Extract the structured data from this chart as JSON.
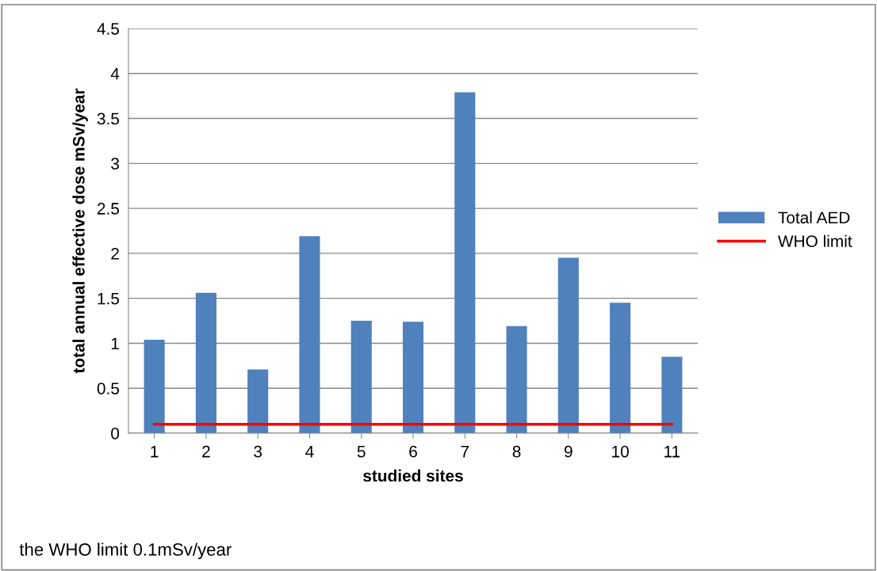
{
  "chart_data": {
    "type": "bar",
    "xlabel": "studied sites",
    "ylabel": "total annual effective dose mSv/year",
    "categories": [
      "1",
      "2",
      "3",
      "4",
      "5",
      "6",
      "7",
      "8",
      "9",
      "10",
      "11"
    ],
    "series": [
      {
        "name": "Total AED",
        "color": "#4f81bd",
        "values": [
          1.04,
          1.56,
          0.71,
          2.19,
          1.25,
          1.24,
          3.79,
          1.19,
          1.95,
          1.45,
          0.85
        ]
      },
      {
        "name": "WHO limit",
        "type": "line",
        "color": "#ff0000",
        "values": [
          0.1,
          0.1,
          0.1,
          0.1,
          0.1,
          0.1,
          0.1,
          0.1,
          0.1,
          0.1,
          0.1
        ]
      }
    ],
    "ylim": [
      0,
      4.5
    ],
    "yticks": [
      0,
      0.5,
      1,
      1.5,
      2,
      2.5,
      3,
      3.5,
      4,
      4.5
    ],
    "grid": "y",
    "legend": "right",
    "marker": "none",
    "annotations": [
      "the WHO limit 0.1mSv/year"
    ]
  }
}
